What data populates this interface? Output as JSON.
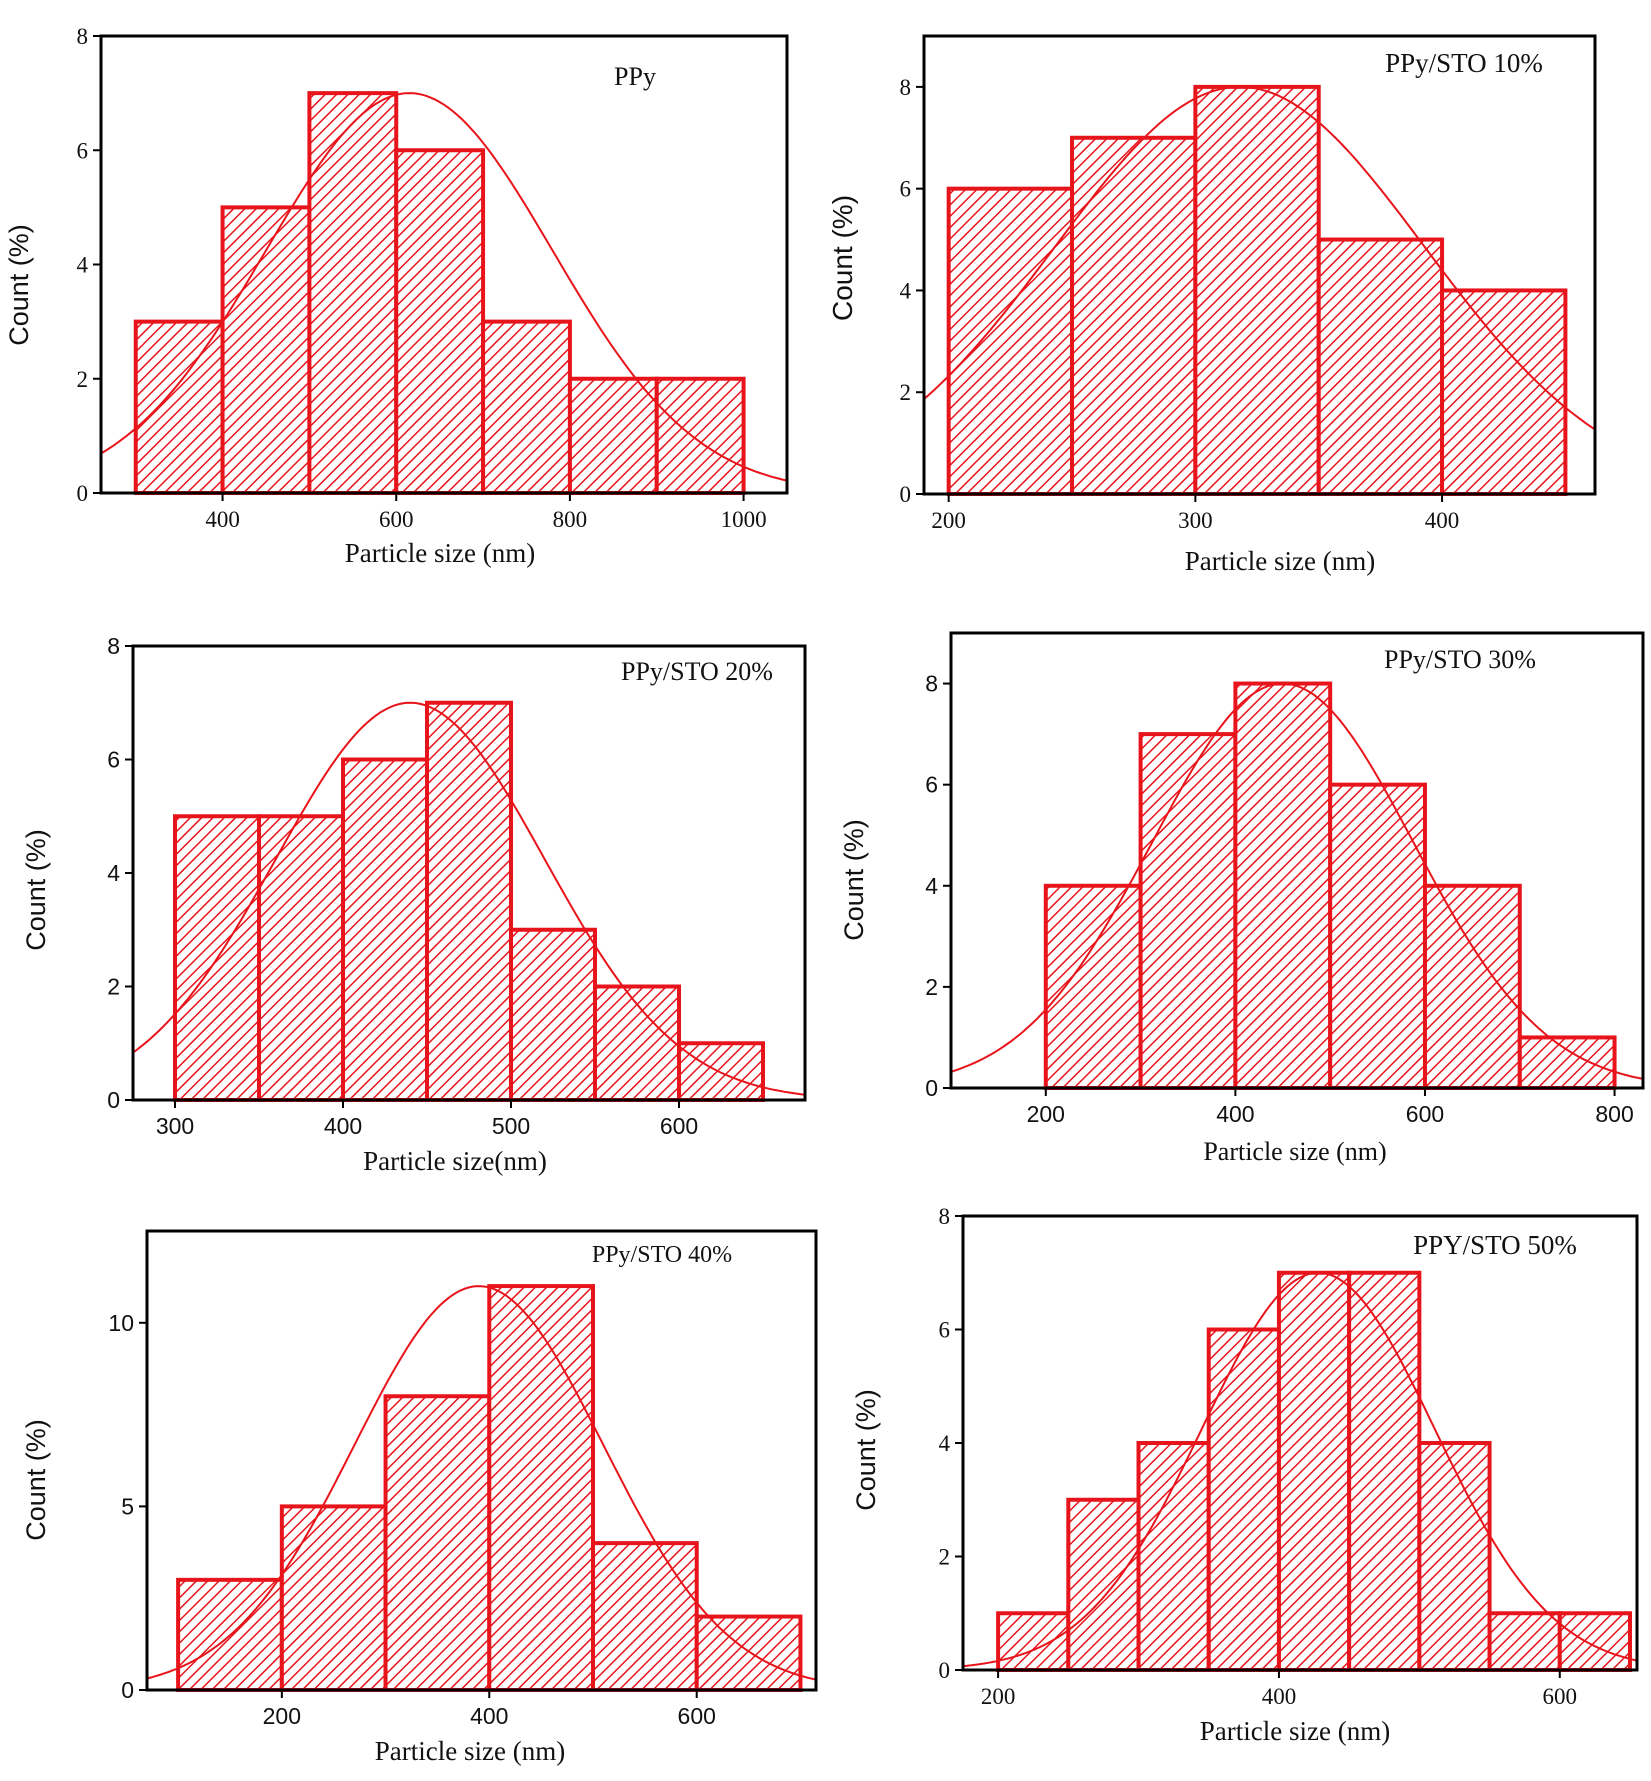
{
  "figure_title": "Particle size distribution histograms",
  "colors": {
    "bar": "#e8141b",
    "frame": "#000000",
    "text": "#111111"
  },
  "chart_data": [
    {
      "id": "ppy",
      "type": "bar",
      "title": "PPy",
      "xlabel": "Particle size (nm)",
      "ylabel": "Count (%)",
      "bin_edges": [
        300,
        400,
        500,
        600,
        700,
        800,
        900,
        1000
      ],
      "values": [
        3,
        5,
        7,
        6,
        3,
        2,
        2
      ],
      "xlim": [
        260,
        1050
      ],
      "ylim": [
        0,
        8
      ],
      "xticks": [
        400,
        600,
        800,
        1000
      ],
      "yticks": [
        0,
        2,
        4,
        6,
        8
      ],
      "fit": {
        "mean": 615,
        "sd": 165,
        "peak": 7
      }
    },
    {
      "id": "sto10",
      "type": "bar",
      "title": "PPy/STO 10%",
      "xlabel": "Particle size (nm)",
      "ylabel": "Count (%)",
      "bin_edges": [
        200,
        250,
        300,
        350,
        400,
        450
      ],
      "values": [
        6,
        7,
        8,
        5,
        4
      ],
      "xlim": [
        190,
        462
      ],
      "ylim": [
        0,
        9
      ],
      "xticks": [
        200,
        300,
        400
      ],
      "yticks": [
        0,
        2,
        4,
        6,
        8
      ],
      "fit": {
        "mean": 318,
        "sd": 75,
        "peak": 8
      }
    },
    {
      "id": "sto20",
      "type": "bar",
      "title": "PPy/STO 20%",
      "xlabel": "Particle size(nm)",
      "ylabel": "Count (%)",
      "bin_edges": [
        300,
        350,
        400,
        450,
        500,
        550,
        600,
        650
      ],
      "values": [
        5,
        5,
        6,
        7,
        3,
        2,
        1
      ],
      "xlim": [
        275,
        675
      ],
      "ylim": [
        0,
        8
      ],
      "xticks": [
        300,
        400,
        500,
        600
      ],
      "yticks": [
        0,
        2,
        4,
        6,
        8
      ],
      "fit": {
        "mean": 440,
        "sd": 80,
        "peak": 7
      }
    },
    {
      "id": "sto30",
      "type": "bar",
      "title": "PPy/STO 30%",
      "xlabel": "Particle size (nm)",
      "ylabel": "Count (%)",
      "bin_edges": [
        200,
        300,
        400,
        500,
        600,
        700,
        800
      ],
      "values": [
        4,
        7,
        8,
        6,
        4,
        1
      ],
      "xlim": [
        100,
        830
      ],
      "ylim": [
        0,
        9
      ],
      "xticks": [
        200,
        400,
        600,
        800
      ],
      "yticks": [
        0,
        2,
        4,
        6,
        8
      ],
      "fit": {
        "mean": 450,
        "sd": 138,
        "peak": 8
      }
    },
    {
      "id": "sto40",
      "type": "bar",
      "title": "PPy/STO 40%",
      "xlabel": "Particle size (nm)",
      "ylabel": "Count (%)",
      "bin_edges": [
        100,
        200,
        300,
        400,
        500,
        600,
        700
      ],
      "values": [
        3,
        5,
        8,
        11,
        4,
        2
      ],
      "xlim": [
        70,
        715
      ],
      "ylim": [
        0,
        12.5
      ],
      "xticks": [
        200,
        400,
        600
      ],
      "yticks": [
        0,
        5,
        10
      ],
      "fit": {
        "mean": 390,
        "sd": 120,
        "peak": 11
      }
    },
    {
      "id": "sto50",
      "type": "bar",
      "title": "PPY/STO 50%",
      "xlabel": "Particle size (nm)",
      "ylabel": "Count (%)",
      "bin_edges": [
        200,
        250,
        300,
        350,
        400,
        450,
        500,
        550,
        600,
        650
      ],
      "values": [
        1,
        3,
        4,
        6,
        7,
        7,
        4,
        1,
        1
      ],
      "xlim": [
        175,
        655
      ],
      "ylim": [
        0,
        8
      ],
      "xticks": [
        200,
        400,
        600
      ],
      "yticks": [
        0,
        2,
        4,
        6,
        8
      ],
      "fit": {
        "mean": 428,
        "sd": 83,
        "peak": 7
      }
    }
  ]
}
